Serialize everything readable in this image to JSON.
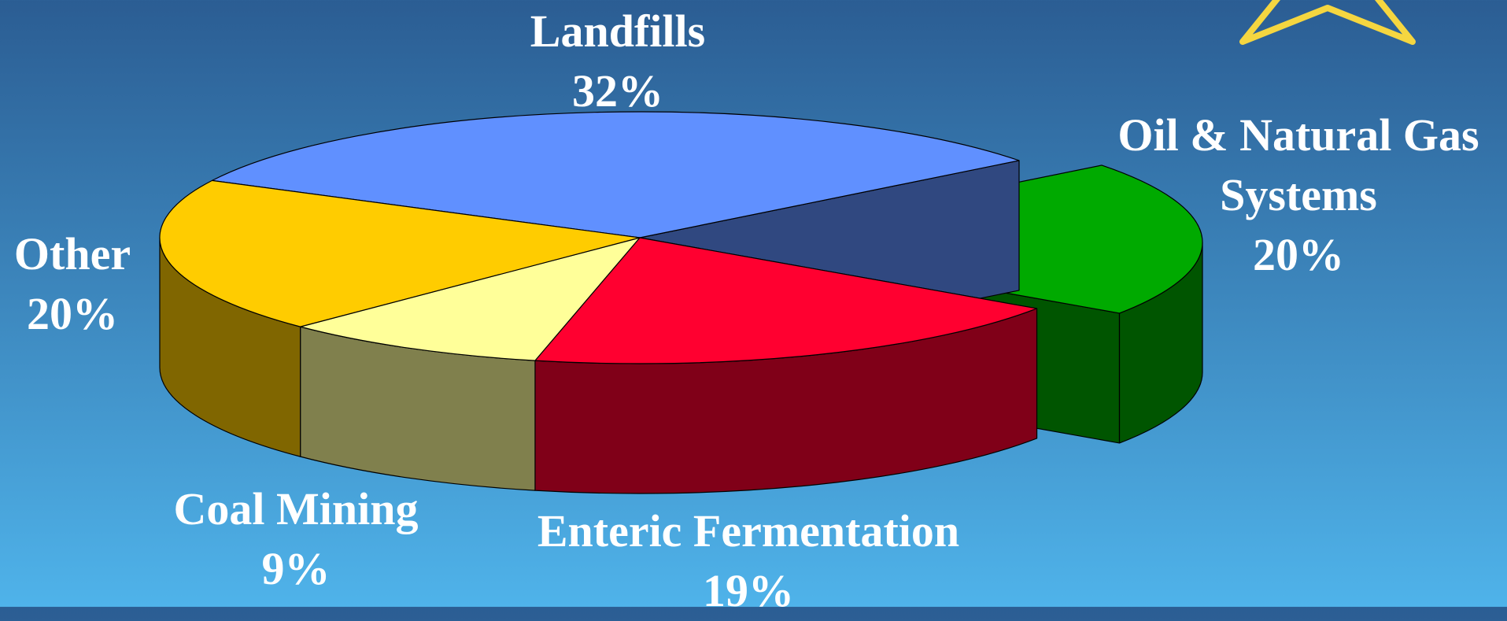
{
  "chart_data": {
    "type": "pie3d",
    "categories": [
      "Landfills",
      "Oil & Natural Gas Systems",
      "Enteric Fermentation",
      "Coal Mining",
      "Other"
    ],
    "values": [
      32,
      20,
      19,
      9,
      20
    ],
    "value_labels": [
      "32%",
      "20%",
      "19%",
      "9%",
      "20%"
    ],
    "colors": [
      "#6090ff",
      "#00aa00",
      "#ff0030",
      "#ffff99",
      "#ffcc00"
    ],
    "exploded": [
      false,
      true,
      false,
      false,
      false
    ]
  }
}
